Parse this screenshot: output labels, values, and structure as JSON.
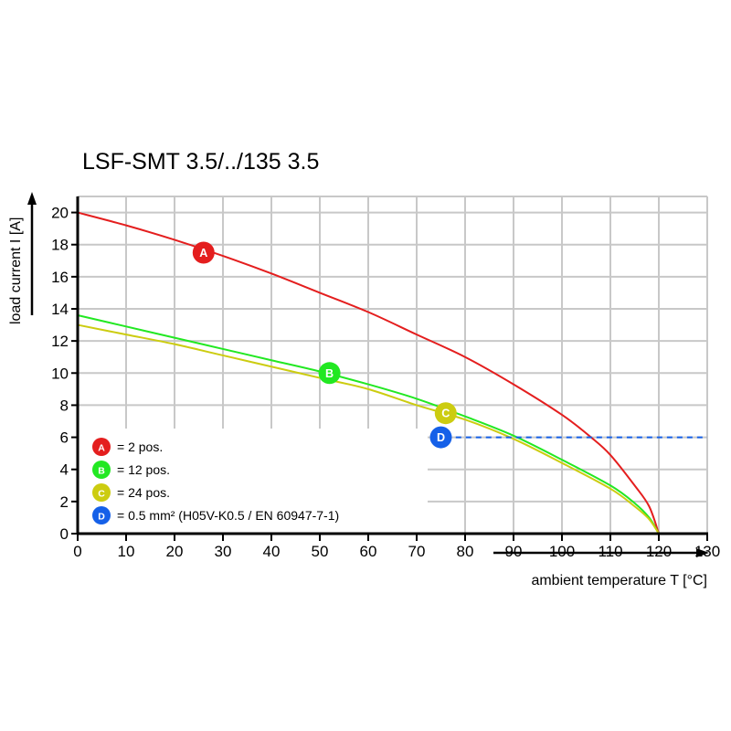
{
  "chart_data": {
    "type": "line",
    "title": "LSF-SMT 3.5/../135 3.5",
    "xlabel": "ambient temperature T [°C]",
    "ylabel": "load current I [A]",
    "xlim": [
      0,
      130
    ],
    "ylim": [
      0,
      21
    ],
    "xticks": [
      0,
      10,
      20,
      30,
      40,
      50,
      60,
      70,
      80,
      90,
      100,
      110,
      120,
      130
    ],
    "yticks": [
      0,
      2,
      4,
      6,
      8,
      10,
      12,
      14,
      16,
      18,
      20
    ],
    "grid": true,
    "legend_position": "bottom-left",
    "series": [
      {
        "marker": "A",
        "name": "= 2 pos.",
        "color": "#e41e1e",
        "marker_at": [
          26,
          17.5
        ],
        "x": [
          0,
          10,
          20,
          30,
          40,
          50,
          60,
          70,
          80,
          90,
          100,
          106,
          110,
          115,
          118,
          120
        ],
        "y": [
          20,
          19.2,
          18.3,
          17.3,
          16.2,
          15.0,
          13.8,
          12.4,
          11.0,
          9.3,
          7.4,
          6.0,
          4.9,
          3.0,
          1.7,
          0
        ]
      },
      {
        "marker": "B",
        "name": "= 12 pos.",
        "color": "#22e822",
        "marker_at": [
          52,
          10
        ],
        "x": [
          0,
          10,
          20,
          30,
          40,
          50,
          60,
          70,
          80,
          90,
          100,
          110,
          115,
          118,
          120
        ],
        "y": [
          13.6,
          12.9,
          12.2,
          11.5,
          10.8,
          10.1,
          9.3,
          8.4,
          7.3,
          6.1,
          4.6,
          3.0,
          1.9,
          1.0,
          0
        ]
      },
      {
        "marker": "C",
        "name": "= 24 pos.",
        "color": "#cccc10",
        "marker_at": [
          76,
          7.5
        ],
        "x": [
          0,
          10,
          20,
          30,
          40,
          50,
          60,
          70,
          80,
          90,
          100,
          110,
          115,
          118,
          120
        ],
        "y": [
          13.0,
          12.4,
          11.8,
          11.1,
          10.4,
          9.7,
          9.0,
          8.0,
          7.1,
          5.9,
          4.4,
          2.8,
          1.7,
          0.9,
          0
        ]
      },
      {
        "marker": "D",
        "name": "= 0.5 mm² (H05V-K0.5 / EN 60947-7-1)",
        "color": "#1560e8",
        "marker_at": [
          75,
          6
        ],
        "dashed": true,
        "x": [
          76,
          130
        ],
        "y": [
          6,
          6
        ]
      }
    ]
  }
}
